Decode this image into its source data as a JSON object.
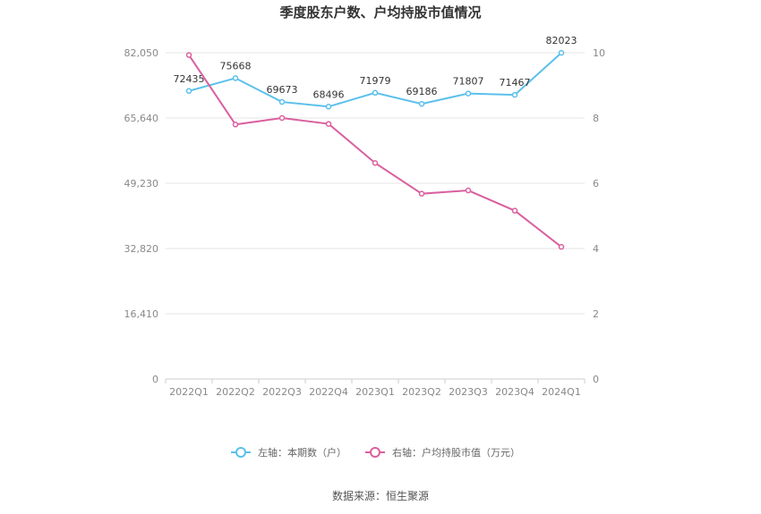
{
  "chart_data": {
    "type": "line",
    "title": "季度股东户数、户均持股市值情况",
    "categories": [
      "2022Q1",
      "2022Q2",
      "2022Q3",
      "2022Q4",
      "2023Q1",
      "2023Q2",
      "2023Q3",
      "2023Q4",
      "2024Q1"
    ],
    "y_left": {
      "ticks": [
        "0",
        "16,410",
        "32,820",
        "49,230",
        "65,640",
        "82,050"
      ],
      "ylim": [
        0,
        82050
      ]
    },
    "y_right": {
      "ticks": [
        "0",
        "2",
        "4",
        "6",
        "8",
        "10"
      ],
      "ylim": [
        0,
        10
      ]
    },
    "series": [
      {
        "name": "左轴：本期数（户）",
        "axis": "left",
        "color": "#5bc0eb",
        "values": [
          72435,
          75668,
          69673,
          68496,
          71979,
          69186,
          71807,
          71467,
          82023
        ],
        "labels": [
          "72435",
          "75668",
          "69673",
          "68496",
          "71979",
          "69186",
          "71807",
          "71467",
          "82023"
        ]
      },
      {
        "name": "右轴：户均持股市值（万元）",
        "axis": "right",
        "color": "#d9609f",
        "values": [
          9.93,
          7.8,
          8.0,
          7.82,
          6.62,
          5.68,
          5.78,
          5.16,
          4.05
        ]
      }
    ],
    "grid": true,
    "legend": "bottom-center"
  },
  "source": "数据来源：恒生聚源"
}
